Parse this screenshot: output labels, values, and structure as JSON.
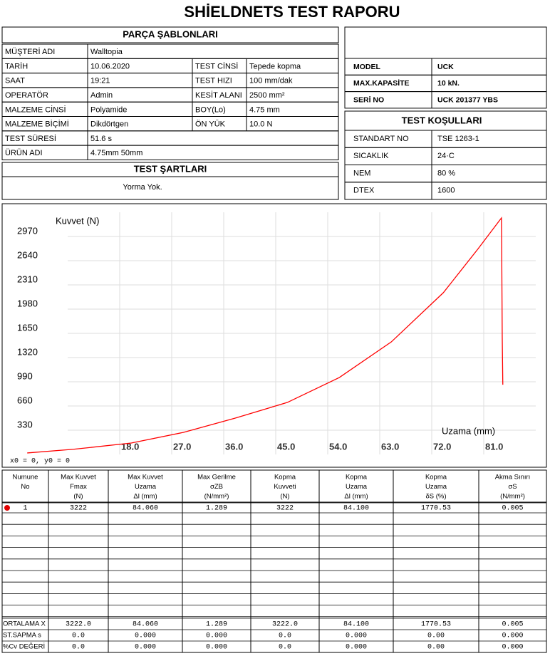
{
  "title": "SHİELDNETS TEST RAPORU",
  "parts": {
    "header": "PARÇA ŞABLONLARI",
    "rows": [
      [
        "MÜŞTERİ ADI",
        "Walltopia"
      ],
      [
        "TARİH",
        "10.06.2020",
        "TEST CİNSİ",
        "Tepede kopma"
      ],
      [
        "SAAT",
        "19:21",
        "TEST HIZI",
        "100 mm/dak"
      ],
      [
        "OPERATÖR",
        "Admin",
        "KESİT ALANI",
        "2500 mm²"
      ],
      [
        "MALZEME CİNSİ",
        "Polyamide",
        "BOY(Lo)",
        "4.75 mm"
      ],
      [
        "MALZEME BİÇİMİ",
        "Dikdörtgen",
        "ÖN YÜK",
        "10.0 N"
      ],
      [
        "TEST SÜRESİ",
        "51.6 s"
      ],
      [
        "ÜRÜN ADI",
        "4.75mm 50mm"
      ]
    ]
  },
  "conditions": {
    "header": "TEST ŞARTLARI",
    "text": "Yorma Yok."
  },
  "machine": {
    "rows": [
      [
        "MODEL",
        "UCK"
      ],
      [
        "MAX.KAPASİTE",
        "10 kN."
      ],
      [
        "SERİ NO",
        "UCK 201377 YBS"
      ]
    ]
  },
  "environment": {
    "header": "TEST KOŞULLARI",
    "rows": [
      [
        "STANDART NO",
        "TSE 1263-1"
      ],
      [
        "SICAKLIK",
        "24·C"
      ],
      [
        "NEM",
        "80 %"
      ],
      [
        "DTEX",
        "1600"
      ]
    ]
  },
  "chart_data": {
    "type": "line",
    "y_label": "Kuvvet (N)",
    "x_label": "Uzama (mm)",
    "note": "x0 = 0, y0 = 0",
    "x": [
      2,
      10,
      20,
      29,
      38,
      47,
      56,
      65,
      74,
      80,
      84.06,
      84.1,
      84.2,
      84.3
    ],
    "series": [
      {
        "color": "#ff0000",
        "values": [
          20,
          70,
          155,
          300,
          495,
          708,
          1048,
          1533,
          2203,
          2800,
          3222,
          2900,
          1600,
          950
        ]
      }
    ],
    "xlim": [
      0,
      90
    ],
    "ylim": [
      0,
      3300
    ],
    "xticks": [
      {
        "value": 18,
        "label": "18.0"
      },
      {
        "value": 27,
        "label": "27.0"
      },
      {
        "value": 36,
        "label": "36.0"
      },
      {
        "value": 45,
        "label": "45.0"
      },
      {
        "value": 54,
        "label": "54.0"
      },
      {
        "value": 63,
        "label": "63.0"
      },
      {
        "value": 72,
        "label": "72.0"
      },
      {
        "value": 81,
        "label": "81.0"
      }
    ],
    "yticks": [
      330,
      660,
      990,
      1320,
      1650,
      1980,
      2310,
      2640,
      2970
    ],
    "grid": true
  },
  "results": {
    "columns": [
      [
        "Numune",
        "No"
      ],
      [
        "Max Kuvvet",
        "Fmax",
        "(N)"
      ],
      [
        "Max Kuvvet",
        "Uzama",
        "Δl  (mm)"
      ],
      [
        "Max Gerilme",
        "σZB",
        "(N/mm²)"
      ],
      [
        "Kopma",
        "Kuvveti",
        "(N)"
      ],
      [
        "Kopma",
        "Uzama",
        "Δl  (mm)"
      ],
      [
        "Kopma",
        "Uzama",
        "δS  (%)"
      ],
      [
        "Akma Sınırı",
        "σS",
        "(N/mm²)"
      ]
    ],
    "rows": [
      [
        "1",
        "3222",
        "84.060",
        "1.289",
        "3222",
        "84.100",
        "1770.53",
        "0.005"
      ]
    ],
    "summary": [
      {
        "label": "ORTALAMA X",
        "values": [
          "3222.0",
          "84.060",
          "1.289",
          "3222.0",
          "84.100",
          "1770.53",
          "0.005"
        ]
      },
      {
        "label": "ST.SAPMA s",
        "values": [
          "0.0",
          "0.000",
          "0.000",
          "0.0",
          "0.000",
          "0.00",
          "0.000"
        ]
      },
      {
        "label": "%Cv DEĞERİ",
        "values": [
          "0.0",
          "0.000",
          "0.000",
          "0.0",
          "0.000",
          "0.00",
          "0.000"
        ]
      }
    ]
  }
}
